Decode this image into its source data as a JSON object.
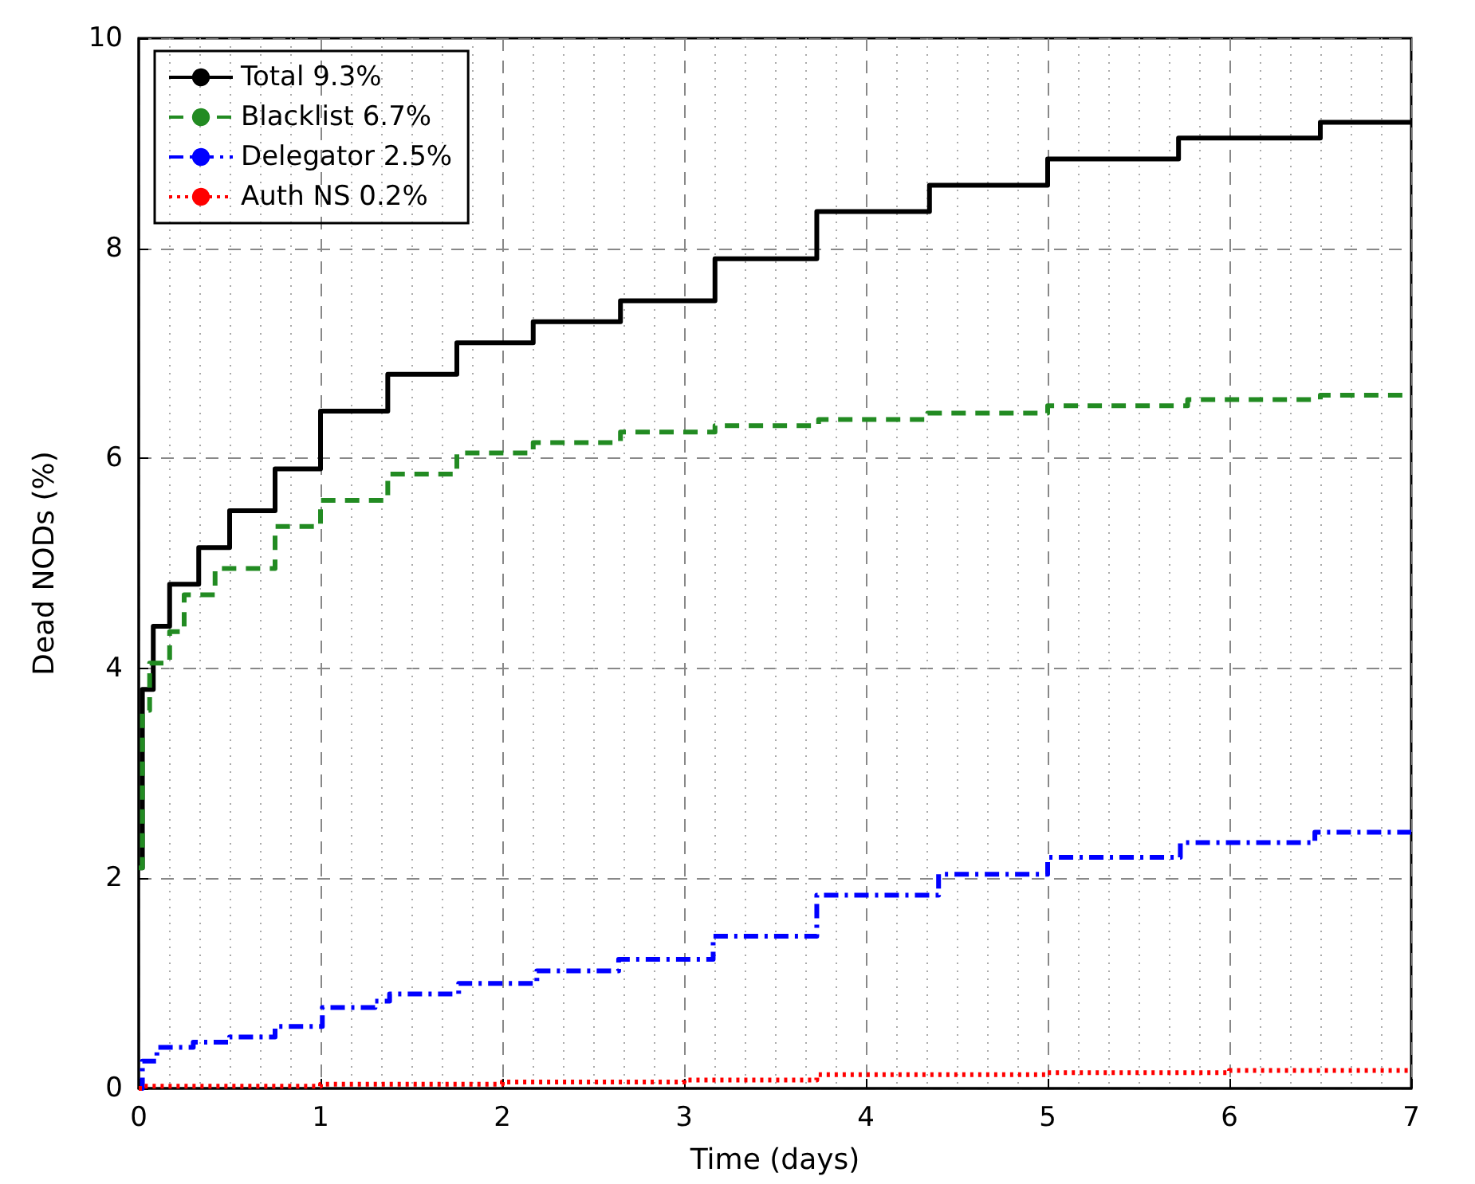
{
  "chart_data": {
    "type": "step",
    "xlabel": "Time (days)",
    "ylabel": "Dead NODs (%)",
    "xlim": [
      0,
      7
    ],
    "xticks": [
      0,
      1,
      2,
      3,
      4,
      5,
      6,
      7
    ],
    "ylim": [
      0,
      10
    ],
    "yticks": [
      0,
      2,
      4,
      6,
      8,
      10
    ],
    "grid": true,
    "legend": "top left",
    "marker": "none",
    "series": [
      {
        "name": "Total 9.3%",
        "color": "#000000",
        "line_style": "solid",
        "x": [
          0,
          0.02,
          0.08,
          0.17,
          0.33,
          0.5,
          0.75,
          1.0,
          1.37,
          1.75,
          2.17,
          2.65,
          3.17,
          3.73,
          4.35,
          5.0,
          5.72,
          6.5,
          7
        ],
        "values": [
          2.1,
          3.8,
          4.4,
          4.8,
          5.15,
          5.5,
          5.9,
          6.45,
          6.8,
          7.1,
          7.3,
          7.5,
          7.9,
          8.35,
          8.6,
          8.85,
          9.05,
          9.2,
          9.2
        ]
      },
      {
        "name": "Blacklist 6.7%",
        "color": "#228b22",
        "line_style": "dashed",
        "x": [
          0,
          0.02,
          0.06,
          0.17,
          0.25,
          0.42,
          0.75,
          1.0,
          1.37,
          1.75,
          2.17,
          2.65,
          3.17,
          3.74,
          4.34,
          5.0,
          5.77,
          6.5,
          7
        ],
        "values": [
          2.1,
          3.6,
          4.05,
          4.35,
          4.7,
          4.95,
          5.35,
          5.6,
          5.85,
          6.05,
          6.15,
          6.25,
          6.31,
          6.37,
          6.43,
          6.5,
          6.56,
          6.6,
          6.6
        ]
      },
      {
        "name": "Delegator 2.5%",
        "color": "#0000ff",
        "line_style": "dashdot",
        "x": [
          0,
          0.02,
          0.1,
          0.3,
          0.5,
          0.75,
          1.01,
          1.3,
          1.38,
          1.76,
          2.19,
          2.64,
          3.16,
          3.73,
          4.4,
          5.0,
          5.73,
          6.47,
          7
        ],
        "values": [
          0,
          0.26,
          0.39,
          0.44,
          0.49,
          0.59,
          0.77,
          0.83,
          0.9,
          1.0,
          1.12,
          1.23,
          1.45,
          1.84,
          2.04,
          2.2,
          2.34,
          2.44,
          2.45
        ]
      },
      {
        "name": "Auth NS 0.2%",
        "color": "#ff0000",
        "line_style": "dotted",
        "x": [
          0,
          0.02,
          1,
          2,
          3,
          3.73,
          5,
          6,
          7
        ],
        "values": [
          0,
          0.02,
          0.04,
          0.06,
          0.08,
          0.13,
          0.15,
          0.17,
          0.18
        ]
      }
    ]
  }
}
